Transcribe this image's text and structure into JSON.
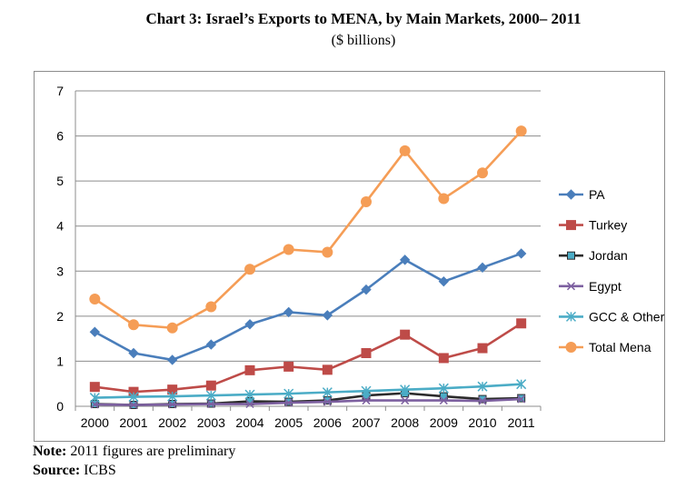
{
  "title": "Chart 3: Israel’s Exports to MENA, by Main Markets, 2000– 2011",
  "subtitle": "($ billions)",
  "note": {
    "label": "Note:",
    "text": " 2011 figures are preliminary"
  },
  "source": {
    "label": "Source:",
    "text": " ICBS"
  },
  "chart_data": {
    "type": "line",
    "title": "Chart 3: Israel’s Exports to MENA, by Main Markets, 2000– 2011",
    "subtitle": "($ billions)",
    "x": [
      "2000",
      "2001",
      "2002",
      "2003",
      "2004",
      "2005",
      "2006",
      "2007",
      "2008",
      "2009",
      "2010",
      "2011"
    ],
    "ylim": [
      0,
      7
    ],
    "yticks": [
      0,
      1,
      2,
      3,
      4,
      5,
      6,
      7
    ],
    "grid": true,
    "legend": "right",
    "series": [
      {
        "name": "PA",
        "color": "#4a7ebb",
        "marker": "diamond",
        "values": [
          1.65,
          1.18,
          1.03,
          1.37,
          1.82,
          2.09,
          2.02,
          2.59,
          3.25,
          2.77,
          3.08,
          3.39
        ]
      },
      {
        "name": "Turkey",
        "color": "#be4b48",
        "marker": "square",
        "values": [
          0.43,
          0.32,
          0.37,
          0.46,
          0.8,
          0.88,
          0.81,
          1.18,
          1.59,
          1.07,
          1.29,
          1.84
        ]
      },
      {
        "name": "Jordan",
        "color": "#2b2b2b",
        "marker": "square-small",
        "values": [
          0.05,
          0.03,
          0.05,
          0.06,
          0.11,
          0.1,
          0.13,
          0.24,
          0.29,
          0.22,
          0.16,
          0.18
        ]
      },
      {
        "name": "Egypt",
        "color": "#7d60a0",
        "marker": "x",
        "values": [
          0.04,
          0.03,
          0.04,
          0.05,
          0.05,
          0.08,
          0.1,
          0.13,
          0.13,
          0.13,
          0.12,
          0.16
        ]
      },
      {
        "name": "GCC & Other",
        "color": "#4bacc6",
        "marker": "star",
        "values": [
          0.19,
          0.21,
          0.22,
          0.24,
          0.26,
          0.28,
          0.31,
          0.34,
          0.37,
          0.4,
          0.44,
          0.49
        ]
      },
      {
        "name": "Total Mena",
        "color": "#f59d56",
        "marker": "circle",
        "values": [
          2.38,
          1.81,
          1.74,
          2.21,
          3.04,
          3.48,
          3.42,
          4.54,
          5.67,
          4.61,
          5.18,
          6.11
        ]
      }
    ]
  }
}
